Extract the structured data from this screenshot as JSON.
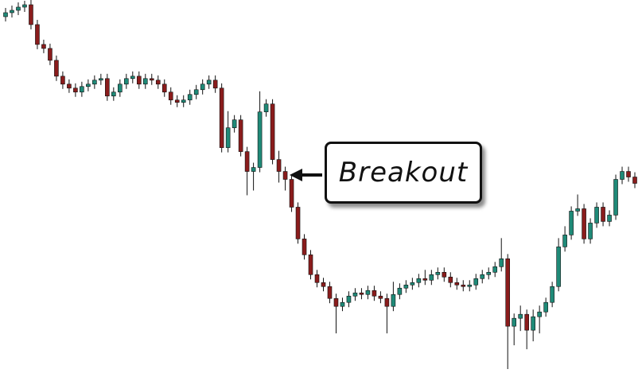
{
  "chart_data": {
    "type": "candlestick",
    "annotation": "Breakout",
    "up_color": "#1f8a78",
    "down_color": "#8a1c1c",
    "wick_color": "#111111",
    "ylim": [
      0,
      480
    ],
    "open": [
      459,
      464,
      467,
      471,
      474,
      449,
      424,
      419,
      404,
      384,
      374,
      369,
      364,
      371,
      374,
      379,
      381,
      359,
      364,
      374,
      381,
      384,
      374,
      381,
      379,
      374,
      364,
      354,
      351,
      354,
      361,
      367,
      374,
      379,
      369,
      294,
      319,
      329,
      289,
      264,
      269,
      339,
      349,
      279,
      264,
      254,
      219,
      179,
      159,
      134,
      124,
      119,
      104,
      94,
      99,
      107,
      111,
      109,
      114,
      107,
      104,
      94,
      109,
      117,
      121,
      124,
      129,
      127,
      134,
      137,
      131,
      124,
      121,
      119,
      121,
      129,
      134,
      137,
      144,
      154,
      69,
      79,
      84,
      64,
      81,
      87,
      99,
      119,
      169,
      184,
      214,
      217,
      179,
      199,
      219,
      201,
      209,
      254,
      264,
      257
    ],
    "high": [
      470,
      473,
      477,
      479,
      480,
      455,
      430,
      425,
      410,
      390,
      380,
      375,
      377,
      380,
      385,
      387,
      387,
      370,
      380,
      387,
      390,
      390,
      387,
      387,
      385,
      380,
      370,
      360,
      360,
      367,
      373,
      380,
      385,
      385,
      375,
      340,
      335,
      335,
      295,
      275,
      365,
      355,
      355,
      290,
      270,
      260,
      225,
      185,
      165,
      140,
      130,
      125,
      110,
      105,
      113,
      117,
      117,
      120,
      120,
      113,
      110,
      125,
      123,
      127,
      130,
      135,
      140,
      140,
      143,
      143,
      137,
      130,
      127,
      127,
      135,
      140,
      143,
      150,
      180,
      160,
      85,
      95,
      90,
      90,
      95,
      105,
      125,
      180,
      195,
      220,
      235,
      223,
      205,
      225,
      225,
      215,
      260,
      270,
      270,
      263
    ],
    "low": [
      453,
      458,
      461,
      465,
      443,
      418,
      413,
      398,
      378,
      368,
      363,
      358,
      358,
      365,
      368,
      373,
      353,
      353,
      358,
      368,
      375,
      368,
      368,
      373,
      368,
      358,
      348,
      345,
      345,
      348,
      355,
      361,
      368,
      363,
      288,
      288,
      313,
      283,
      234,
      240,
      263,
      333,
      273,
      250,
      240,
      213,
      173,
      153,
      128,
      118,
      113,
      98,
      60,
      88,
      93,
      101,
      103,
      103,
      101,
      98,
      60,
      88,
      103,
      111,
      115,
      118,
      121,
      121,
      128,
      125,
      118,
      115,
      113,
      113,
      115,
      123,
      128,
      131,
      138,
      15,
      45,
      63,
      40,
      50,
      60,
      81,
      93,
      113,
      163,
      178,
      208,
      173,
      173,
      193,
      195,
      195,
      203,
      248,
      251,
      243
    ],
    "close": [
      464,
      467,
      471,
      474,
      449,
      424,
      419,
      404,
      384,
      374,
      369,
      364,
      371,
      374,
      379,
      381,
      359,
      364,
      374,
      381,
      384,
      374,
      381,
      379,
      374,
      364,
      354,
      351,
      354,
      361,
      367,
      374,
      379,
      369,
      294,
      319,
      329,
      289,
      264,
      269,
      339,
      349,
      279,
      264,
      254,
      219,
      179,
      159,
      134,
      124,
      119,
      104,
      94,
      99,
      107,
      111,
      109,
      114,
      107,
      104,
      94,
      109,
      117,
      121,
      124,
      129,
      127,
      134,
      137,
      131,
      124,
      121,
      119,
      121,
      129,
      134,
      137,
      144,
      154,
      69,
      79,
      84,
      64,
      81,
      87,
      99,
      119,
      169,
      184,
      214,
      217,
      179,
      199,
      219,
      201,
      209,
      254,
      264,
      257,
      249
    ]
  }
}
